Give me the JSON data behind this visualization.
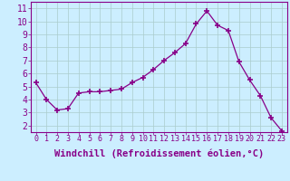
{
  "x": [
    0,
    1,
    2,
    3,
    4,
    5,
    6,
    7,
    8,
    9,
    10,
    11,
    12,
    13,
    14,
    15,
    16,
    17,
    18,
    19,
    20,
    21,
    22,
    23
  ],
  "y": [
    5.3,
    4.0,
    3.2,
    3.3,
    4.5,
    4.6,
    4.6,
    4.7,
    4.8,
    5.3,
    5.7,
    6.3,
    7.0,
    7.6,
    8.3,
    9.8,
    10.8,
    9.7,
    9.3,
    6.9,
    5.5,
    4.3,
    2.6,
    1.6
  ],
  "line_color": "#880088",
  "marker": "+",
  "marker_size": 4,
  "bg_color": "#cceeff",
  "grid_color": "#aacccc",
  "xlabel": "Windchill (Refroidissement éolien,°C)",
  "ylim": [
    1.5,
    11.5
  ],
  "xlim": [
    -0.5,
    23.5
  ],
  "yticks": [
    2,
    3,
    4,
    5,
    6,
    7,
    8,
    9,
    10,
    11
  ],
  "xticks": [
    0,
    1,
    2,
    3,
    4,
    5,
    6,
    7,
    8,
    9,
    10,
    11,
    12,
    13,
    14,
    15,
    16,
    17,
    18,
    19,
    20,
    21,
    22,
    23
  ],
  "axis_color": "#880088",
  "tick_color": "#880088",
  "xlabel_fontsize": 7.5,
  "ytick_fontsize": 7,
  "xtick_fontsize": 6
}
